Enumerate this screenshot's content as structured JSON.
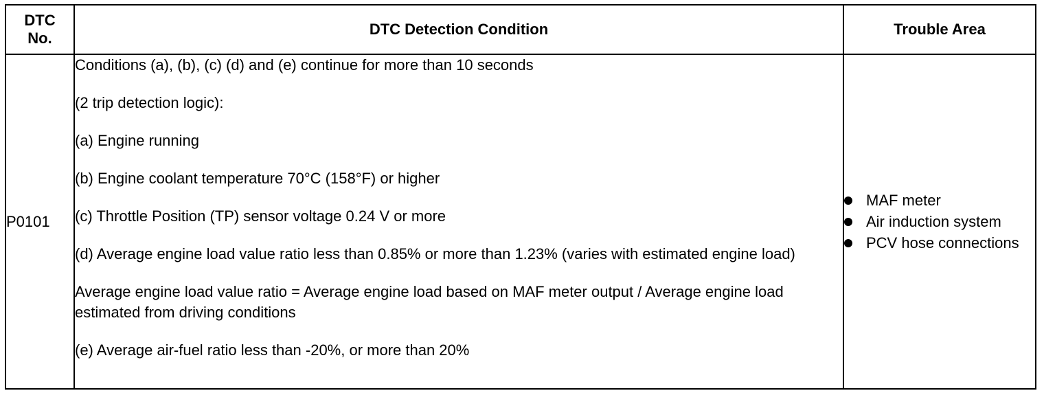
{
  "table": {
    "headers": {
      "dtc_no_line1": "DTC",
      "dtc_no_line2": "No.",
      "condition": "DTC Detection Condition",
      "trouble_area": "Trouble Area"
    },
    "rows": [
      {
        "code": "P0101",
        "conditions": [
          "Conditions (a), (b), (c) (d) and (e) continue for more than 10 seconds",
          "(2 trip detection logic):",
          "(a) Engine running",
          "(b) Engine coolant temperature 70°C (158°F) or higher",
          "(c) Throttle Position (TP) sensor voltage 0.24 V or more",
          "(d) Average engine load value ratio less than 0.85% or more than 1.23% (varies with estimated engine load)",
          "Average engine load value ratio = Average engine load based on MAF meter output / Average engine load estimated from driving conditions",
          "(e) Average air-fuel ratio less than -20%, or more than 20%"
        ],
        "trouble_areas": [
          "MAF meter",
          "Air induction system",
          "PCV hose connections"
        ]
      }
    ]
  }
}
